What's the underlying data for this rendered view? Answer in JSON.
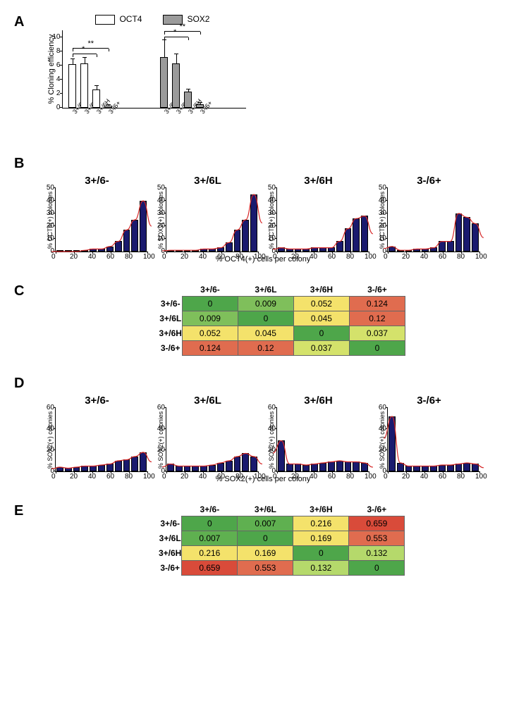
{
  "legend": {
    "oct4": "OCT4",
    "sox2": "SOX2"
  },
  "colors": {
    "oct4_fill": "#ffffff",
    "sox2_fill": "#9b9b9b",
    "bar_border": "#000000",
    "hist_bar": "#1a1a6e",
    "curve": "#d62728"
  },
  "panelA": {
    "label": "A",
    "ylabel": "% Cloning efficiency",
    "ylim": [
      0,
      10
    ],
    "ytick_step": 2,
    "categories": [
      "3+/6-",
      "3+/6L",
      "3+/6H",
      "3-/6+"
    ],
    "oct4": {
      "values": [
        6.2,
        6.3,
        2.6,
        0.3
      ],
      "err": [
        0.7,
        0.8,
        0.5,
        0.1
      ]
    },
    "sox2": {
      "values": [
        7.2,
        6.3,
        2.3,
        0.5
      ],
      "err": [
        2.4,
        1.3,
        0.3,
        0.2
      ]
    },
    "sig": [
      {
        "group": "oct4",
        "from": 0,
        "to": 2,
        "y": 7.6,
        "label": "*"
      },
      {
        "group": "oct4",
        "from": 0,
        "to": 3,
        "y": 8.4,
        "label": "**"
      },
      {
        "group": "sox2",
        "from": 0,
        "to": 2,
        "y": 10.0,
        "label": "*"
      },
      {
        "group": "sox2",
        "from": 0,
        "to": 3,
        "y": 10.8,
        "label": "**"
      }
    ]
  },
  "panelB": {
    "label": "B",
    "xlabel": "% OCT4(+) cells per colony",
    "xlim": [
      0,
      100
    ],
    "xtick_step": 20,
    "ylim": [
      0,
      50
    ],
    "ytick_step": 10,
    "charts": [
      {
        "title": "3+/6-",
        "ylabel": "% OCT4(+) colonies",
        "bins": [
          0,
          0,
          0,
          1,
          2,
          2,
          4,
          8,
          17,
          25,
          40
        ]
      },
      {
        "title": "3+/6L",
        "ylabel": "% SOX2(+) colonies",
        "bins": [
          1,
          1,
          1,
          1,
          2,
          2,
          3,
          7,
          17,
          25,
          45
        ]
      },
      {
        "title": "3+/6H",
        "ylabel": "% OCT4(+) colonies",
        "bins": [
          3,
          2,
          2,
          2,
          3,
          3,
          3,
          8,
          18,
          26,
          28
        ]
      },
      {
        "title": "3-/6+",
        "ylabel": "% OCT4(+) colonies",
        "bins": [
          4,
          1,
          1,
          2,
          2,
          3,
          8,
          8,
          30,
          27,
          22
        ]
      }
    ]
  },
  "panelC": {
    "label": "C",
    "cols": [
      "3+/6-",
      "3+/6L",
      "3+/6H",
      "3-/6+"
    ],
    "rows": [
      "3+/6-",
      "3+/6L",
      "3+/6H",
      "3-/6+"
    ],
    "cells": [
      [
        {
          "v": "0",
          "c": "#4ea64a"
        },
        {
          "v": "0.009",
          "c": "#7fbf5b"
        },
        {
          "v": "0.052",
          "c": "#f4e26b"
        },
        {
          "v": "0.124",
          "c": "#e06c4f"
        }
      ],
      [
        {
          "v": "0.009",
          "c": "#7fbf5b"
        },
        {
          "v": "0",
          "c": "#4ea64a"
        },
        {
          "v": "0.045",
          "c": "#f4e26b"
        },
        {
          "v": "0.12",
          "c": "#e06c4f"
        }
      ],
      [
        {
          "v": "0.052",
          "c": "#f4e26b"
        },
        {
          "v": "0.045",
          "c": "#f4e26b"
        },
        {
          "v": "0",
          "c": "#4ea64a"
        },
        {
          "v": "0.037",
          "c": "#d4e26b"
        }
      ],
      [
        {
          "v": "0.124",
          "c": "#e06c4f"
        },
        {
          "v": "0.12",
          "c": "#e06c4f"
        },
        {
          "v": "0.037",
          "c": "#d4e26b"
        },
        {
          "v": "0",
          "c": "#4ea64a"
        }
      ]
    ]
  },
  "panelD": {
    "label": "D",
    "xlabel": "% SOX2(+) cells per colony",
    "xlim": [
      0,
      100
    ],
    "xtick_step": 20,
    "ylim": [
      0,
      60
    ],
    "ytick_step": 20,
    "charts": [
      {
        "title": "3+/6-",
        "ylabel": "% SOX2(+) colonies",
        "bins": [
          4,
          3,
          4,
          5,
          5,
          6,
          7,
          10,
          11,
          14,
          18
        ]
      },
      {
        "title": "3+/6L",
        "ylabel": "% SOX2(+) colonies",
        "bins": [
          7,
          5,
          5,
          5,
          5,
          6,
          8,
          10,
          14,
          17,
          14
        ]
      },
      {
        "title": "3+/6H",
        "ylabel": "% SOX2(+) colonies",
        "bins": [
          29,
          7,
          7,
          6,
          7,
          8,
          9,
          10,
          9,
          9,
          8
        ]
      },
      {
        "title": "3-/6+",
        "ylabel": "% SOX2(+) colonies",
        "bins": [
          52,
          8,
          5,
          5,
          5,
          5,
          6,
          6,
          7,
          8,
          7
        ]
      }
    ]
  },
  "panelE": {
    "label": "E",
    "cols": [
      "3+/6-",
      "3+/6L",
      "3+/6H",
      "3-/6+"
    ],
    "rows": [
      "3+/6-",
      "3+/6L",
      "3+/6H",
      "3-/6+"
    ],
    "cells": [
      [
        {
          "v": "0",
          "c": "#4ea64a"
        },
        {
          "v": "0.007",
          "c": "#5fb050"
        },
        {
          "v": "0.216",
          "c": "#f4e26b"
        },
        {
          "v": "0.659",
          "c": "#d94b3a"
        }
      ],
      [
        {
          "v": "0.007",
          "c": "#5fb050"
        },
        {
          "v": "0",
          "c": "#4ea64a"
        },
        {
          "v": "0.169",
          "c": "#f4e26b"
        },
        {
          "v": "0.553",
          "c": "#e06c4f"
        }
      ],
      [
        {
          "v": "0.216",
          "c": "#f4e26b"
        },
        {
          "v": "0.169",
          "c": "#f4e26b"
        },
        {
          "v": "0",
          "c": "#4ea64a"
        },
        {
          "v": "0.132",
          "c": "#b5d96b"
        }
      ],
      [
        {
          "v": "0.659",
          "c": "#d94b3a"
        },
        {
          "v": "0.553",
          "c": "#e06c4f"
        },
        {
          "v": "0.132",
          "c": "#b5d96b"
        },
        {
          "v": "0",
          "c": "#4ea64a"
        }
      ]
    ]
  }
}
